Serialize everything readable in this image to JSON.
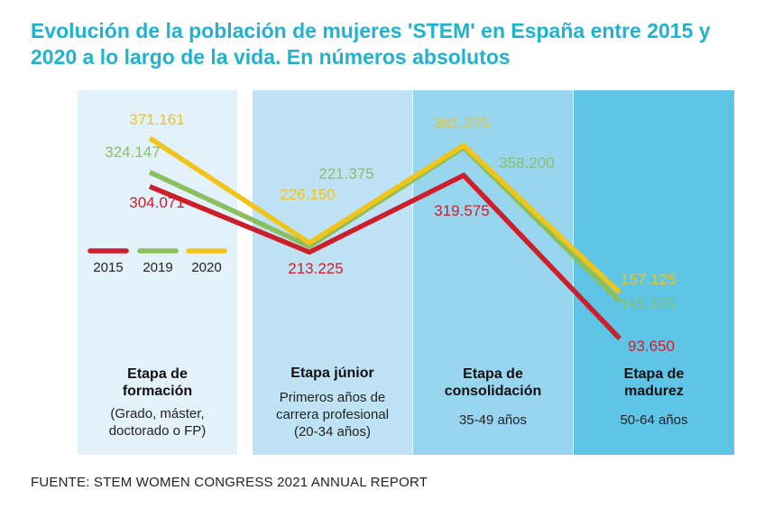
{
  "title": "Evolución de la población de mujeres 'STEM' en España entre 2015 y 2020 a lo largo de la vida. En números absolutos",
  "source": "FUENTE: STEM WOMEN CONGRESS 2021 ANNUAL REPORT",
  "colors": {
    "title": "#1fb3cf",
    "2015": "#cc1f2b",
    "2019": "#8bbf5e",
    "2020": "#f0c419",
    "band_1": "#e3f1fa",
    "band_2": "#bfe3f4",
    "band_3": "#98d5ee",
    "band_4": "#5ec5e7"
  },
  "chart_data": {
    "type": "line",
    "categories": [
      "Etapa de formación",
      "Etapa júnior",
      "Etapa de consolidación",
      "Etapa de madurez"
    ],
    "series": [
      {
        "name": "2015",
        "values": [
          304071,
          213225,
          319575,
          93650
        ],
        "labels": [
          "304.071",
          "213.225",
          "319.575",
          "93.650"
        ]
      },
      {
        "name": "2019",
        "values": [
          324147,
          221375,
          358200,
          145375
        ],
        "labels": [
          "324.147",
          "221.375",
          "358.200",
          "145.375"
        ]
      },
      {
        "name": "2020",
        "values": [
          371161,
          226150,
          361275,
          157125
        ],
        "labels": [
          "371.161",
          "226.150",
          "361.275",
          "157.125"
        ]
      }
    ],
    "legend_position": "left",
    "grid": false,
    "stages": [
      {
        "title_lines": [
          "Etapa de",
          "formación"
        ],
        "desc_lines": [
          "(Grado, máster,",
          "doctorado o FP)"
        ]
      },
      {
        "title_lines": [
          "Etapa júnior"
        ],
        "desc_lines": [
          "Primeros años de",
          "carrera profesional",
          "(20-34 años)"
        ]
      },
      {
        "title_lines": [
          "Etapa de",
          "consolidación"
        ],
        "desc_lines": [
          "35-49 años"
        ]
      },
      {
        "title_lines": [
          "Etapa de",
          "madurez"
        ],
        "desc_lines": [
          "50-64 años"
        ]
      }
    ]
  }
}
